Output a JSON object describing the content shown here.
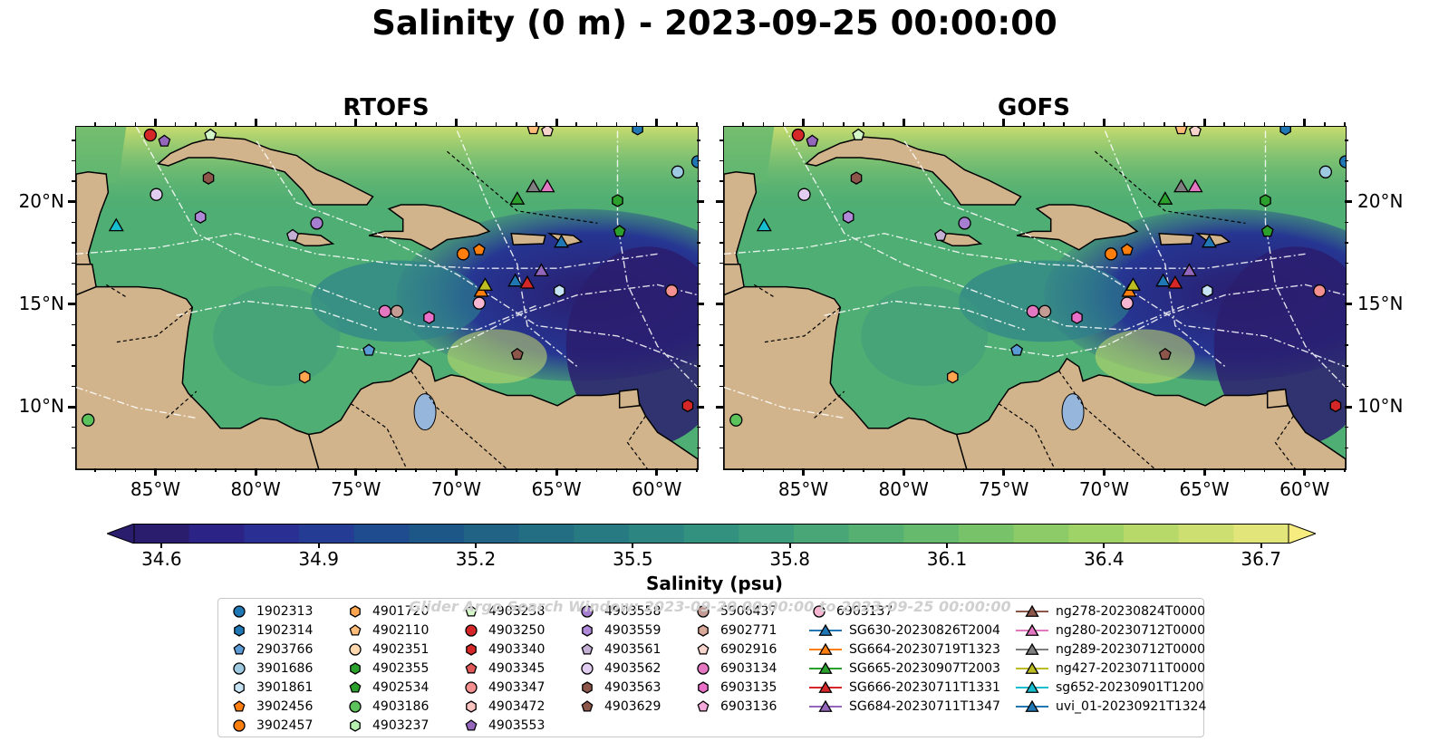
{
  "title": "Salinity (0 m) - 2023-09-25 00:00:00",
  "panels": [
    {
      "title": "RTOFS"
    },
    {
      "title": "GOFS"
    }
  ],
  "axes": {
    "x_ticks": [
      "85°W",
      "80°W",
      "75°W",
      "70°W",
      "65°W",
      "60°W"
    ],
    "y_ticks": [
      "20°N",
      "15°N",
      "10°N"
    ],
    "lon_range": [
      -89,
      -58
    ],
    "lat_range": [
      7,
      23.7
    ]
  },
  "colorbar": {
    "label": "Salinity (psu)",
    "ticks": [
      "34.6",
      "34.9",
      "35.2",
      "35.5",
      "35.8",
      "36.1",
      "36.4",
      "36.7"
    ],
    "range": [
      34.6,
      36.7
    ],
    "extend": "both",
    "colormap": "haline"
  },
  "legend": {
    "watermark": "Glider Argo Search Window: 2023-09-20 00:00:00 to 2023-09-25 00:00:00",
    "columns": [
      [
        {
          "label": "1902313",
          "marker": "circle",
          "color": "#1f77b4"
        },
        {
          "label": "1902314",
          "marker": "hexagon",
          "color": "#1f77b4"
        },
        {
          "label": "2903766",
          "marker": "pentagon",
          "color": "#5b9bd5"
        },
        {
          "label": "3901686",
          "marker": "circle",
          "color": "#9ecae1"
        },
        {
          "label": "3901861",
          "marker": "hexagon",
          "color": "#c6e4f5"
        },
        {
          "label": "3902456",
          "marker": "pentagon",
          "color": "#ff7f0e"
        },
        {
          "label": "3902457",
          "marker": "circle",
          "color": "#ff7f0e"
        }
      ],
      [
        {
          "label": "4901720",
          "marker": "hexagon",
          "color": "#ffa54f"
        },
        {
          "label": "4902110",
          "marker": "pentagon",
          "color": "#ffbb78"
        },
        {
          "label": "4902351",
          "marker": "circle",
          "color": "#ffd8b0"
        },
        {
          "label": "4902355",
          "marker": "hexagon",
          "color": "#2ca02c"
        },
        {
          "label": "4902534",
          "marker": "pentagon",
          "color": "#2ca02c"
        },
        {
          "label": "4903186",
          "marker": "circle",
          "color": "#5cc25c"
        },
        {
          "label": "4903237",
          "marker": "hexagon",
          "color": "#b5f0b0"
        }
      ],
      [
        {
          "label": "4903238",
          "marker": "pentagon",
          "color": "#d4f7c8"
        },
        {
          "label": "4903250",
          "marker": "circle",
          "color": "#d62728"
        },
        {
          "label": "4903340",
          "marker": "hexagon",
          "color": "#d62728"
        },
        {
          "label": "4903345",
          "marker": "pentagon",
          "color": "#e05858"
        },
        {
          "label": "4903347",
          "marker": "circle",
          "color": "#f49090"
        },
        {
          "label": "4903472",
          "marker": "hexagon",
          "color": "#fbc4c0"
        },
        {
          "label": "4903553",
          "marker": "pentagon",
          "color": "#9467bd"
        }
      ],
      [
        {
          "label": "4903558",
          "marker": "circle",
          "color": "#a77fd0"
        },
        {
          "label": "4903559",
          "marker": "hexagon",
          "color": "#b08ad8"
        },
        {
          "label": "4903561",
          "marker": "pentagon",
          "color": "#c5b0d5"
        },
        {
          "label": "4903562",
          "marker": "circle",
          "color": "#e0cdf0"
        },
        {
          "label": "4903563",
          "marker": "hexagon",
          "color": "#8c564b"
        },
        {
          "label": "4903629",
          "marker": "pentagon",
          "color": "#8c564b"
        }
      ],
      [
        {
          "label": "5906437",
          "marker": "circle",
          "color": "#c49c94"
        },
        {
          "label": "6902771",
          "marker": "hexagon",
          "color": "#d9a89a"
        },
        {
          "label": "6902916",
          "marker": "pentagon",
          "color": "#f7d5cd"
        },
        {
          "label": "6903134",
          "marker": "circle",
          "color": "#e377c2"
        },
        {
          "label": "6903135",
          "marker": "hexagon",
          "color": "#e870c8"
        },
        {
          "label": "6903136",
          "marker": "pentagon",
          "color": "#f5a8dc"
        }
      ],
      [
        {
          "label": "6903137",
          "marker": "circle",
          "color": "#f7b6d2"
        },
        {
          "label": "SG630-20230826T2004",
          "marker": "triangle",
          "color": "#1f77b4"
        },
        {
          "label": "SG664-20230719T1323",
          "marker": "triangle",
          "color": "#ff7f0e"
        },
        {
          "label": "SG665-20230907T2003",
          "marker": "triangle",
          "color": "#2ca02c"
        },
        {
          "label": "SG666-20230711T1331",
          "marker": "triangle",
          "color": "#d62728"
        },
        {
          "label": "SG684-20230711T1347",
          "marker": "triangle",
          "color": "#9467bd"
        }
      ],
      [
        {
          "label": "ng278-20230824T0000",
          "marker": "triangle",
          "color": "#8c564b"
        },
        {
          "label": "ng280-20230712T0000",
          "marker": "triangle",
          "color": "#e377c2"
        },
        {
          "label": "ng289-20230712T0000",
          "marker": "triangle",
          "color": "#7f7f7f"
        },
        {
          "label": "ng427-20230711T0000",
          "marker": "triangle",
          "color": "#bcbd22"
        },
        {
          "label": "sg652-20230901T1200",
          "marker": "triangle",
          "color": "#17becf"
        },
        {
          "label": "uvi_01-20230921T1324",
          "marker": "triangle",
          "color": "#1f77b4"
        }
      ]
    ]
  },
  "markers": [
    {
      "id": "4903250",
      "lon": -85.3,
      "lat": 23.3,
      "shape": "circle",
      "color": "#d62728"
    },
    {
      "id": "4903553",
      "lon": -84.6,
      "lat": 23.0,
      "shape": "pentagon",
      "color": "#9467bd"
    },
    {
      "id": "4903238",
      "lon": -82.3,
      "lat": 23.3,
      "shape": "pentagon",
      "color": "#d4f7c8"
    },
    {
      "id": "6902916",
      "lon": -65.5,
      "lat": 23.5,
      "shape": "pentagon",
      "color": "#f7d5cd"
    },
    {
      "id": "4902110",
      "lon": -66.2,
      "lat": 23.6,
      "shape": "pentagon",
      "color": "#ffbb78"
    },
    {
      "id": "1902314",
      "lon": -61.0,
      "lat": 23.6,
      "shape": "hexagon",
      "color": "#1f77b4"
    },
    {
      "id": "1902313",
      "lon": -58.0,
      "lat": 22.0,
      "shape": "circle",
      "color": "#1f77b4"
    },
    {
      "id": "3901686",
      "lon": -59.0,
      "lat": 21.5,
      "shape": "circle",
      "color": "#9ecae1"
    },
    {
      "id": "4903563",
      "lon": -82.4,
      "lat": 21.2,
      "shape": "hexagon",
      "color": "#8c564b"
    },
    {
      "id": "4903562",
      "lon": -85.0,
      "lat": 20.4,
      "shape": "circle",
      "color": "#e0cdf0"
    },
    {
      "id": "4903559",
      "lon": -82.8,
      "lat": 19.3,
      "shape": "hexagon",
      "color": "#b08ad8"
    },
    {
      "id": "4903558",
      "lon": -77.0,
      "lat": 19.0,
      "shape": "circle",
      "color": "#a77fd0"
    },
    {
      "id": "4903561",
      "lon": -78.2,
      "lat": 18.4,
      "shape": "pentagon",
      "color": "#c5b0d5"
    },
    {
      "id": "sg652",
      "lon": -87.0,
      "lat": 18.9,
      "shape": "triangle",
      "color": "#17becf"
    },
    {
      "id": "SG665",
      "lon": -67.0,
      "lat": 20.2,
      "shape": "triangle",
      "color": "#2ca02c"
    },
    {
      "id": "ng289",
      "lon": -66.2,
      "lat": 20.8,
      "shape": "triangle",
      "color": "#7f7f7f"
    },
    {
      "id": "ng280",
      "lon": -65.5,
      "lat": 20.8,
      "shape": "triangle",
      "color": "#e377c2"
    },
    {
      "id": "4902355",
      "lon": -62.0,
      "lat": 20.1,
      "shape": "hexagon",
      "color": "#2ca02c"
    },
    {
      "id": "4902534",
      "lon": -61.9,
      "lat": 18.6,
      "shape": "pentagon",
      "color": "#2ca02c"
    },
    {
      "id": "uvi_01",
      "lon": -64.8,
      "lat": 18.1,
      "shape": "triangle",
      "color": "#1f77b4"
    },
    {
      "id": "3902457",
      "lon": -69.7,
      "lat": 17.5,
      "shape": "circle",
      "color": "#ff7f0e"
    },
    {
      "id": "3902456",
      "lon": -68.9,
      "lat": 17.7,
      "shape": "pentagon",
      "color": "#ff7f0e"
    },
    {
      "id": "SG630",
      "lon": -67.1,
      "lat": 16.2,
      "shape": "triangle",
      "color": "#1f77b4"
    },
    {
      "id": "SG666",
      "lon": -66.5,
      "lat": 16.1,
      "shape": "triangle",
      "color": "#d62728"
    },
    {
      "id": "SG684",
      "lon": -65.8,
      "lat": 16.7,
      "shape": "triangle",
      "color": "#9467bd"
    },
    {
      "id": "SG664",
      "lon": -68.8,
      "lat": 15.7,
      "shape": "triangle",
      "color": "#ff7f0e"
    },
    {
      "id": "ng427",
      "lon": -68.6,
      "lat": 16.0,
      "shape": "triangle",
      "color": "#bcbd22"
    },
    {
      "id": "3901861",
      "lon": -64.9,
      "lat": 15.7,
      "shape": "hexagon",
      "color": "#c6e4f5"
    },
    {
      "id": "4903347",
      "lon": -59.3,
      "lat": 15.7,
      "shape": "circle",
      "color": "#f49090"
    },
    {
      "id": "6903137",
      "lon": -68.9,
      "lat": 15.1,
      "shape": "circle",
      "color": "#f7b6d2"
    },
    {
      "id": "6903134",
      "lon": -73.6,
      "lat": 14.7,
      "shape": "circle",
      "color": "#e377c2"
    },
    {
      "id": "5906437",
      "lon": -73.0,
      "lat": 14.7,
      "shape": "circle",
      "color": "#c49c94"
    },
    {
      "id": "6903135",
      "lon": -71.4,
      "lat": 14.4,
      "shape": "hexagon",
      "color": "#e870c8"
    },
    {
      "id": "2903766",
      "lon": -74.4,
      "lat": 12.8,
      "shape": "pentagon",
      "color": "#5b9bd5"
    },
    {
      "id": "4903629",
      "lon": -67.0,
      "lat": 12.6,
      "shape": "pentagon",
      "color": "#8c564b"
    },
    {
      "id": "4901720",
      "lon": -77.6,
      "lat": 11.5,
      "shape": "hexagon",
      "color": "#ffa54f"
    },
    {
      "id": "4903340",
      "lon": -58.5,
      "lat": 10.1,
      "shape": "hexagon",
      "color": "#d62728"
    },
    {
      "id": "4903186",
      "lon": -88.4,
      "lat": 9.4,
      "shape": "circle",
      "color": "#5cc25c"
    }
  ]
}
